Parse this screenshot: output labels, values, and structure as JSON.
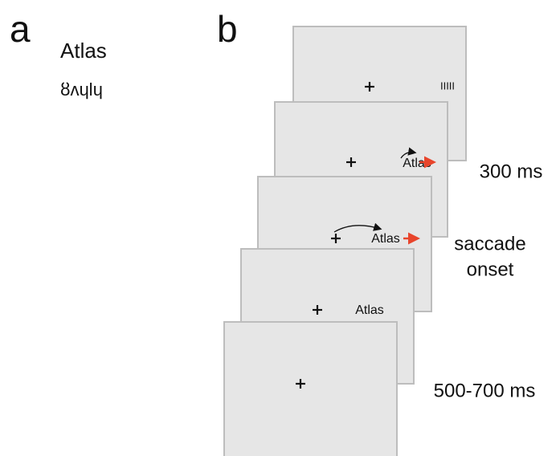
{
  "panel_a": {
    "label": "a",
    "word": "Atlas",
    "preview": "ȣʌɥlɥ"
  },
  "panel_b": {
    "label": "b",
    "frames": [
      {
        "text": "IIIII"
      },
      {
        "text": "Atlas"
      },
      {
        "text": "Atlas"
      },
      {
        "text": "Atlas"
      }
    ],
    "times": {
      "first": "300 ms",
      "second": [
        "saccade",
        "onset"
      ],
      "third": "500-700 ms"
    }
  }
}
